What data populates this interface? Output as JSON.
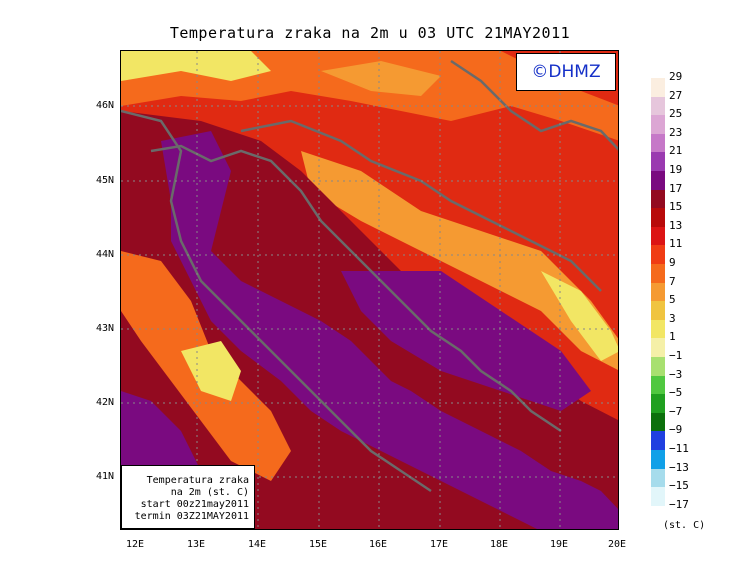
{
  "title": "Temperatura zraka na 2m u 03 UTC 21MAY2011",
  "logo": "©DHMZ",
  "info": {
    "line1": "Temperatura zraka",
    "line2": "na 2m (st. C)",
    "line3": "start 00z21may2011",
    "line4": "termin 03Z21MAY2011"
  },
  "lat_labels": [
    "46N",
    "45N",
    "44N",
    "43N",
    "42N",
    "41N"
  ],
  "lon_labels": [
    "12E",
    "13E",
    "14E",
    "15E",
    "16E",
    "17E",
    "18E",
    "19E",
    "20E"
  ],
  "legend": {
    "unit": "(st. C)",
    "labels": [
      "29",
      "27",
      "25",
      "23",
      "21",
      "19",
      "17",
      "15",
      "13",
      "11",
      "9",
      "7",
      "5",
      "3",
      "1",
      "−1",
      "−3",
      "−5",
      "−7",
      "−9",
      "−11",
      "−13",
      "−15",
      "−17"
    ],
    "colors": [
      "#fbeee0",
      "#e6c6dc",
      "#dca6d4",
      "#c678c8",
      "#9a3ab0",
      "#7a0a80",
      "#930a20",
      "#b80a0a",
      "#dc1414",
      "#f03c14",
      "#f56a1c",
      "#f59a32",
      "#f0c440",
      "#f2e664",
      "#f5f0a8",
      "#a8e070",
      "#50c840",
      "#20a020",
      "#0c700c",
      "#2040e0",
      "#10a0e8",
      "#a6dcec",
      "#e2f6fa"
    ]
  },
  "colors": {
    "warmest_sea": "#7a0a80",
    "land_hot": "#e02a12",
    "border": "#6a6a6a"
  }
}
